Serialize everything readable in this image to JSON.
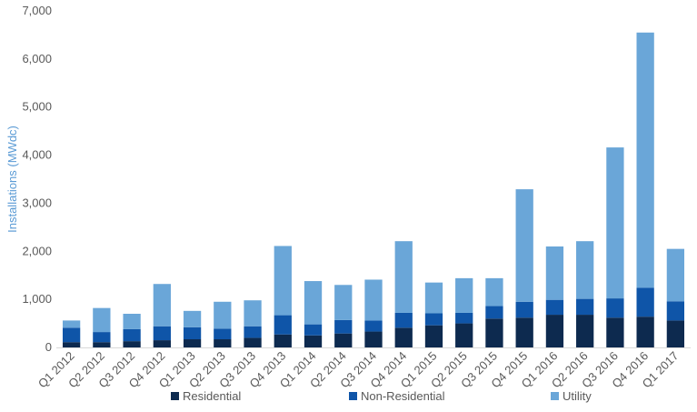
{
  "chart_data": {
    "type": "bar",
    "stacked": true,
    "title": "",
    "xlabel": "",
    "ylabel": "Installations (MWdc)",
    "ylim": [
      0,
      7000
    ],
    "yticks": [
      0,
      1000,
      2000,
      3000,
      4000,
      5000,
      6000,
      7000
    ],
    "ytick_labels": [
      "0",
      "1,000",
      "2,000",
      "3,000",
      "4,000",
      "5,000",
      "6,000",
      "7,000"
    ],
    "grid": false,
    "legend_position": "bottom",
    "categories": [
      "Q1 2012",
      "Q2 2012",
      "Q3 2012",
      "Q4 2012",
      "Q1 2013",
      "Q2 2013",
      "Q3 2013",
      "Q4 2013",
      "Q1 2014",
      "Q2 2014",
      "Q3 2014",
      "Q4 2014",
      "Q1 2015",
      "Q2 2015",
      "Q3 2015",
      "Q4 2015",
      "Q1 2016",
      "Q2 2016",
      "Q3 2016",
      "Q4 2016",
      "Q1 2017"
    ],
    "series": [
      {
        "name": "Residential",
        "color": "#0d2a4f",
        "values": [
          110,
          110,
          130,
          150,
          170,
          170,
          200,
          270,
          250,
          290,
          330,
          410,
          460,
          500,
          600,
          620,
          680,
          680,
          620,
          640,
          560
        ]
      },
      {
        "name": "Non-Residential",
        "color": "#0f55a8",
        "values": [
          300,
          210,
          250,
          290,
          250,
          220,
          240,
          400,
          230,
          280,
          230,
          310,
          250,
          220,
          260,
          330,
          310,
          330,
          400,
          600,
          400
        ]
      },
      {
        "name": "Utility",
        "color": "#6aa6d8",
        "values": [
          150,
          500,
          320,
          880,
          340,
          560,
          540,
          1440,
          900,
          730,
          850,
          1490,
          640,
          720,
          580,
          2340,
          1110,
          1200,
          3140,
          5310,
          1090
        ]
      }
    ]
  }
}
